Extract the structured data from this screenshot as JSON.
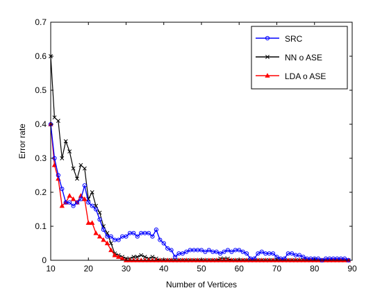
{
  "chart_data": {
    "type": "line",
    "title": "",
    "xlabel": "Number of Vertices",
    "ylabel": "Error rate",
    "xlim": [
      10,
      90
    ],
    "ylim": [
      0,
      0.7
    ],
    "xticks": [
      "10",
      "20",
      "30",
      "40",
      "50",
      "60",
      "70",
      "80",
      "90"
    ],
    "yticks": [
      "0",
      "0.1",
      "0.2",
      "0.3",
      "0.4",
      "0.5",
      "0.6",
      "0.7"
    ],
    "grid": false,
    "legend_position": "top-right",
    "series": [
      {
        "name": "SRC",
        "color": "#0000ff",
        "marker": "circle",
        "x": [
          10,
          11,
          12,
          13,
          14,
          15,
          16,
          17,
          18,
          19,
          20,
          21,
          22,
          23,
          24,
          25,
          26,
          27,
          28,
          29,
          30,
          31,
          32,
          33,
          34,
          35,
          36,
          37,
          38,
          39,
          40,
          41,
          42,
          43,
          44,
          45,
          46,
          47,
          48,
          49,
          50,
          51,
          52,
          53,
          54,
          55,
          56,
          57,
          58,
          59,
          60,
          61,
          62,
          63,
          64,
          65,
          66,
          67,
          68,
          69,
          70,
          71,
          72,
          73,
          74,
          75,
          76,
          77,
          78,
          79,
          80,
          81,
          82,
          83,
          84,
          85,
          86,
          87,
          88,
          89
        ],
        "y": [
          0.4,
          0.3,
          0.25,
          0.21,
          0.17,
          0.17,
          0.16,
          0.17,
          0.18,
          0.22,
          0.17,
          0.16,
          0.15,
          0.12,
          0.09,
          0.07,
          0.07,
          0.06,
          0.06,
          0.07,
          0.07,
          0.08,
          0.08,
          0.07,
          0.08,
          0.08,
          0.08,
          0.07,
          0.09,
          0.06,
          0.05,
          0.035,
          0.03,
          0.01,
          0.02,
          0.02,
          0.025,
          0.03,
          0.03,
          0.03,
          0.03,
          0.025,
          0.03,
          0.025,
          0.025,
          0.02,
          0.025,
          0.03,
          0.025,
          0.03,
          0.03,
          0.025,
          0.02,
          0.005,
          0.005,
          0.02,
          0.025,
          0.02,
          0.02,
          0.02,
          0.01,
          0.005,
          0.005,
          0.02,
          0.02,
          0.015,
          0.015,
          0.01,
          0.005,
          0.005,
          0.005,
          0.005,
          0.0,
          0.005,
          0.005,
          0.005,
          0.005,
          0.005,
          0.005,
          0.0
        ]
      },
      {
        "name": "NN o ASE",
        "color": "#000000",
        "marker": "x",
        "x": [
          10,
          11,
          12,
          13,
          14,
          15,
          16,
          17,
          18,
          19,
          20,
          21,
          22,
          23,
          24,
          25,
          26,
          27,
          28,
          29,
          30,
          31,
          32,
          33,
          34,
          35,
          36,
          37,
          38,
          39,
          40,
          41,
          42,
          43,
          44,
          45,
          46,
          47,
          48,
          49,
          50,
          51,
          52,
          53,
          54,
          55,
          56,
          57,
          58,
          59,
          60,
          61,
          62,
          63,
          64,
          65,
          66,
          67,
          68,
          69,
          70,
          71,
          72,
          73,
          74,
          75,
          76,
          77,
          78,
          79,
          80,
          81,
          82,
          83,
          84,
          85,
          86,
          87,
          88,
          89
        ],
        "y": [
          0.6,
          0.42,
          0.41,
          0.3,
          0.35,
          0.32,
          0.27,
          0.24,
          0.28,
          0.27,
          0.18,
          0.2,
          0.16,
          0.14,
          0.1,
          0.08,
          0.05,
          0.02,
          0.015,
          0.01,
          0.005,
          0.005,
          0.01,
          0.01,
          0.015,
          0.01,
          0.005,
          0.01,
          0.005,
          0.0,
          0.0,
          0.0,
          0.0,
          0.0,
          0.0,
          0.0,
          0.0,
          0.0,
          0.0,
          0.0,
          0.0,
          0.0,
          0.0,
          0.0,
          0.0,
          0.005,
          0.005,
          0.005,
          0.0,
          0.0,
          0.0,
          0.0,
          0.0,
          0.0,
          0.0,
          0.0,
          0.0,
          0.0,
          0.0,
          0.0,
          0.0,
          0.0,
          0.0,
          0.0,
          0.0,
          0.0,
          0.0,
          0.0,
          0.0,
          0.0,
          0.0,
          0.0,
          0.0,
          0.0,
          0.0,
          0.0,
          0.0,
          0.0,
          0.0,
          0.0
        ]
      },
      {
        "name": "LDA o ASE",
        "color": "#ff0000",
        "marker": "triangle",
        "x": [
          10,
          11,
          12,
          13,
          14,
          15,
          16,
          17,
          18,
          19,
          20,
          21,
          22,
          23,
          24,
          25,
          26,
          27,
          28,
          29,
          30,
          31,
          32,
          33,
          34,
          35,
          36,
          37,
          38,
          39,
          40,
          41,
          42,
          43,
          44,
          45,
          46,
          47,
          48,
          49,
          50,
          51,
          52,
          53,
          54,
          55,
          56,
          57,
          58,
          59,
          60,
          61,
          62,
          63,
          64,
          65,
          66,
          67,
          68,
          69,
          70,
          71,
          72,
          73,
          74,
          75,
          76,
          77,
          78,
          79,
          80,
          81,
          82,
          83,
          84,
          85,
          86,
          87,
          88,
          89
        ],
        "y": [
          0.4,
          0.28,
          0.24,
          0.16,
          0.17,
          0.19,
          0.18,
          0.17,
          0.19,
          0.18,
          0.11,
          0.11,
          0.08,
          0.07,
          0.06,
          0.05,
          0.03,
          0.015,
          0.01,
          0.005,
          0.0,
          0.0,
          0.0,
          0.0,
          0.0,
          0.0,
          0.0,
          0.0,
          0.0,
          0.0,
          0.0,
          0.0,
          0.0,
          0.0,
          0.0,
          0.0,
          0.0,
          0.0,
          0.0,
          0.0,
          0.0,
          0.0,
          0.0,
          0.0,
          0.0,
          0.0,
          0.0,
          0.0,
          0.0,
          0.0,
          0.0,
          0.0,
          0.0,
          0.0,
          0.0,
          0.0,
          0.0,
          0.0,
          0.0,
          0.0,
          0.0,
          0.0,
          0.0,
          0.0,
          0.0,
          0.0,
          0.0,
          0.0,
          0.0,
          0.0,
          0.0,
          0.0,
          0.0,
          0.0,
          0.0,
          0.0,
          0.0,
          0.0,
          0.0,
          0.0
        ]
      }
    ]
  }
}
